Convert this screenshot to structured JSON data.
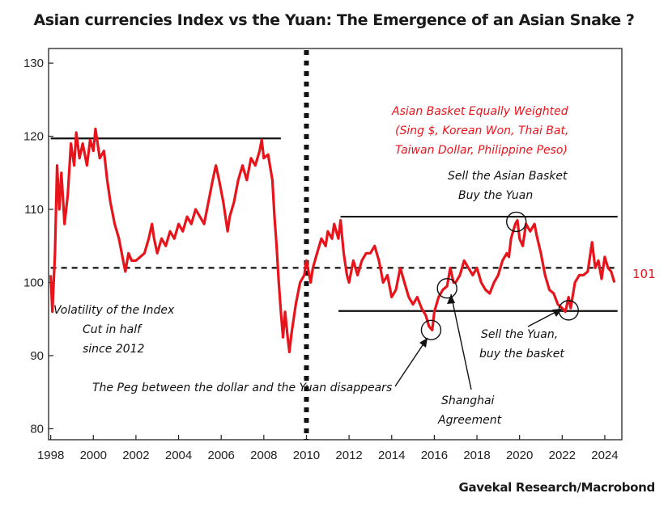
{
  "title": "Asian currencies Index vs the Yuan: The Emergence of an Asian Snake ?",
  "source": "Gavekal Research/Macrobond",
  "chart_data": {
    "type": "line",
    "xlim": [
      1997.9,
      2024.8
    ],
    "ylim": [
      78.5,
      132
    ],
    "y_ticks": [
      80,
      90,
      100,
      110,
      120,
      130
    ],
    "x_ticks": [
      1998,
      2000,
      2002,
      2004,
      2006,
      2008,
      2010,
      2012,
      2014,
      2016,
      2018,
      2020,
      2022,
      2024
    ],
    "series": [
      {
        "color": "#e8141c",
        "points": [
          [
            1998.0,
            101
          ],
          [
            1998.08,
            96
          ],
          [
            1998.2,
            104
          ],
          [
            1998.3,
            116
          ],
          [
            1998.4,
            110
          ],
          [
            1998.5,
            115
          ],
          [
            1998.65,
            108
          ],
          [
            1998.8,
            112
          ],
          [
            1998.95,
            119
          ],
          [
            1999.1,
            116
          ],
          [
            1999.2,
            120.5
          ],
          [
            1999.35,
            117
          ],
          [
            1999.5,
            119
          ],
          [
            1999.7,
            116
          ],
          [
            1999.85,
            119.5
          ],
          [
            2000.0,
            118
          ],
          [
            2000.1,
            121
          ],
          [
            2000.3,
            117
          ],
          [
            2000.5,
            118
          ],
          [
            2000.65,
            114
          ],
          [
            2000.8,
            111
          ],
          [
            2001.0,
            108
          ],
          [
            2001.2,
            106
          ],
          [
            2001.4,
            103
          ],
          [
            2001.5,
            101.5
          ],
          [
            2001.65,
            104
          ],
          [
            2001.8,
            103
          ],
          [
            2002.0,
            103
          ],
          [
            2002.2,
            103.5
          ],
          [
            2002.4,
            104
          ],
          [
            2002.6,
            106
          ],
          [
            2002.75,
            108
          ],
          [
            2002.85,
            106
          ],
          [
            2003.0,
            104
          ],
          [
            2003.2,
            106
          ],
          [
            2003.4,
            105
          ],
          [
            2003.6,
            107
          ],
          [
            2003.8,
            106
          ],
          [
            2004.0,
            108
          ],
          [
            2004.2,
            107
          ],
          [
            2004.4,
            109
          ],
          [
            2004.6,
            108
          ],
          [
            2004.8,
            110
          ],
          [
            2005.0,
            109
          ],
          [
            2005.2,
            108
          ],
          [
            2005.4,
            111
          ],
          [
            2005.6,
            114
          ],
          [
            2005.75,
            116
          ],
          [
            2005.9,
            114
          ],
          [
            2006.1,
            111
          ],
          [
            2006.3,
            107
          ],
          [
            2006.4,
            109
          ],
          [
            2006.6,
            111
          ],
          [
            2006.8,
            114
          ],
          [
            2007.0,
            116
          ],
          [
            2007.2,
            114
          ],
          [
            2007.4,
            117
          ],
          [
            2007.6,
            116
          ],
          [
            2007.8,
            118
          ],
          [
            2007.9,
            119.5
          ],
          [
            2008.0,
            117
          ],
          [
            2008.2,
            117.5
          ],
          [
            2008.4,
            114
          ],
          [
            2008.5,
            109
          ],
          [
            2008.6,
            105
          ],
          [
            2008.7,
            100
          ],
          [
            2008.8,
            96
          ],
          [
            2008.9,
            92.5
          ],
          [
            2009.0,
            96
          ],
          [
            2009.1,
            93
          ],
          [
            2009.2,
            90.5
          ],
          [
            2009.3,
            93
          ],
          [
            2009.5,
            97
          ],
          [
            2009.7,
            100
          ],
          [
            2009.9,
            101
          ],
          [
            2010.0,
            103
          ],
          [
            2010.2,
            100
          ],
          [
            2010.3,
            102
          ],
          [
            2010.5,
            104
          ],
          [
            2010.7,
            106
          ],
          [
            2010.9,
            105
          ],
          [
            2011.0,
            107
          ],
          [
            2011.2,
            106
          ],
          [
            2011.3,
            108
          ],
          [
            2011.5,
            106
          ],
          [
            2011.6,
            108.5
          ],
          [
            2011.75,
            104
          ],
          [
            2011.9,
            101
          ],
          [
            2012.0,
            100
          ],
          [
            2012.2,
            103
          ],
          [
            2012.4,
            101
          ],
          [
            2012.6,
            103
          ],
          [
            2012.8,
            104
          ],
          [
            2013.0,
            104
          ],
          [
            2013.2,
            105
          ],
          [
            2013.4,
            103
          ],
          [
            2013.6,
            100
          ],
          [
            2013.8,
            101
          ],
          [
            2014.0,
            98
          ],
          [
            2014.2,
            99
          ],
          [
            2014.4,
            102
          ],
          [
            2014.6,
            100
          ],
          [
            2014.8,
            98
          ],
          [
            2015.0,
            97
          ],
          [
            2015.2,
            98
          ],
          [
            2015.4,
            96.5
          ],
          [
            2015.6,
            95.5
          ],
          [
            2015.75,
            94
          ],
          [
            2015.9,
            93.5
          ],
          [
            2016.0,
            96
          ],
          [
            2016.2,
            98
          ],
          [
            2016.4,
            99
          ],
          [
            2016.6,
            99.5
          ],
          [
            2016.75,
            102
          ],
          [
            2016.9,
            100
          ],
          [
            2017.0,
            100
          ],
          [
            2017.2,
            101
          ],
          [
            2017.4,
            103
          ],
          [
            2017.6,
            102
          ],
          [
            2017.8,
            101
          ],
          [
            2018.0,
            102
          ],
          [
            2018.2,
            100
          ],
          [
            2018.4,
            99
          ],
          [
            2018.6,
            98.5
          ],
          [
            2018.8,
            100
          ],
          [
            2019.0,
            101
          ],
          [
            2019.2,
            103
          ],
          [
            2019.4,
            104
          ],
          [
            2019.5,
            103.5
          ],
          [
            2019.6,
            106
          ],
          [
            2019.8,
            108
          ],
          [
            2019.9,
            108.5
          ],
          [
            2020.0,
            106
          ],
          [
            2020.15,
            105
          ],
          [
            2020.3,
            108
          ],
          [
            2020.5,
            107
          ],
          [
            2020.7,
            108
          ],
          [
            2020.8,
            106.5
          ],
          [
            2021.0,
            104
          ],
          [
            2021.2,
            101
          ],
          [
            2021.4,
            99
          ],
          [
            2021.6,
            98.5
          ],
          [
            2021.8,
            97
          ],
          [
            2022.0,
            96.5
          ],
          [
            2022.15,
            96
          ],
          [
            2022.3,
            98
          ],
          [
            2022.4,
            96.5
          ],
          [
            2022.6,
            100
          ],
          [
            2022.8,
            101
          ],
          [
            2023.0,
            101
          ],
          [
            2023.2,
            101.5
          ],
          [
            2023.4,
            105.5
          ],
          [
            2023.55,
            102
          ],
          [
            2023.7,
            103
          ],
          [
            2023.85,
            100.5
          ],
          [
            2024.0,
            103.5
          ],
          [
            2024.15,
            102
          ],
          [
            2024.3,
            101.5
          ],
          [
            2024.45,
            100
          ]
        ]
      }
    ],
    "last_value_label": "101",
    "reference_lines": [
      {
        "type": "horizontal",
        "style": "solid",
        "y": 119.7,
        "x": [
          1998.0,
          2008.8
        ]
      },
      {
        "type": "horizontal",
        "style": "solid",
        "y": 109.0,
        "x": [
          2011.6,
          2024.6
        ]
      },
      {
        "type": "horizontal",
        "style": "solid",
        "y": 96.1,
        "x": [
          2011.5,
          2024.6
        ]
      },
      {
        "type": "horizontal",
        "style": "dashed",
        "y": 102.0,
        "x": [
          1998.0,
          2024.6
        ]
      },
      {
        "type": "vertical",
        "style": "dotted",
        "x": 2010.0
      }
    ],
    "circles": [
      {
        "x": 2015.85,
        "y": 93.5
      },
      {
        "x": 2016.6,
        "y": 99.2
      },
      {
        "x": 2019.85,
        "y": 108.3
      },
      {
        "x": 2022.3,
        "y": 96.2
      }
    ],
    "annotations": {
      "basket_line1": "Asian Basket Equally Weighted",
      "basket_line2": "(Sing $, Korean Won, Thai Bat,",
      "basket_line3": "Taiwan Dollar, Philippine Peso)",
      "sell_basket_line1": "Sell the Asian Basket",
      "sell_basket_line2": "Buy the Yuan",
      "volatility_line1": "Volatility of the Index",
      "volatility_line2": "Cut in half",
      "volatility_line3": "since 2012",
      "sell_yuan_line1": "Sell the Yuan,",
      "sell_yuan_line2": "buy the basket",
      "peg": "The Peg  between the dollar and the Yuan disappears",
      "shanghai_line1": "Shanghai",
      "shanghai_line2": "Agreement"
    }
  }
}
